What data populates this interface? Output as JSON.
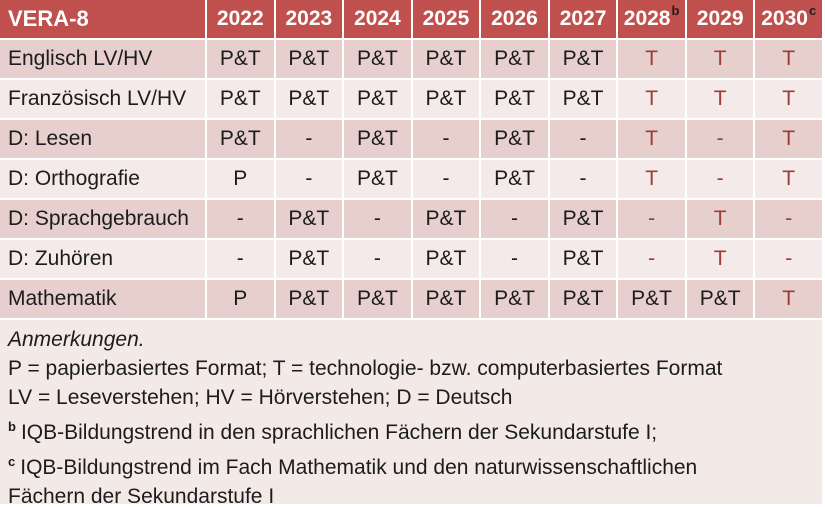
{
  "title": "VERA-8",
  "columns": [
    {
      "year": "2022",
      "sup": ""
    },
    {
      "year": "2023",
      "sup": ""
    },
    {
      "year": "2024",
      "sup": ""
    },
    {
      "year": "2025",
      "sup": ""
    },
    {
      "year": "2026",
      "sup": ""
    },
    {
      "year": "2027",
      "sup": ""
    },
    {
      "year": "2028",
      "sup": "b"
    },
    {
      "year": "2029",
      "sup": ""
    },
    {
      "year": "2030",
      "sup": "c"
    }
  ],
  "rows": [
    {
      "label": "Englisch LV/HV",
      "cells": [
        {
          "text": "P&T",
          "red": false
        },
        {
          "text": "P&T",
          "red": false
        },
        {
          "text": "P&T",
          "red": false
        },
        {
          "text": "P&T",
          "red": false
        },
        {
          "text": "P&T",
          "red": false
        },
        {
          "text": "P&T",
          "red": false
        },
        {
          "text": "T",
          "red": true
        },
        {
          "text": "T",
          "red": true
        },
        {
          "text": "T",
          "red": true
        }
      ]
    },
    {
      "label": "Französisch LV/HV",
      "cells": [
        {
          "text": "P&T",
          "red": false
        },
        {
          "text": "P&T",
          "red": false
        },
        {
          "text": "P&T",
          "red": false
        },
        {
          "text": "P&T",
          "red": false
        },
        {
          "text": "P&T",
          "red": false
        },
        {
          "text": "P&T",
          "red": false
        },
        {
          "text": "T",
          "red": true
        },
        {
          "text": "T",
          "red": true
        },
        {
          "text": "T",
          "red": true
        }
      ]
    },
    {
      "label": "D: Lesen",
      "cells": [
        {
          "text": "P&T",
          "red": false
        },
        {
          "text": "-",
          "red": false
        },
        {
          "text": "P&T",
          "red": false
        },
        {
          "text": "-",
          "red": false
        },
        {
          "text": "P&T",
          "red": false
        },
        {
          "text": "-",
          "red": false
        },
        {
          "text": "T",
          "red": true
        },
        {
          "text": "-",
          "red": true
        },
        {
          "text": "T",
          "red": true
        }
      ]
    },
    {
      "label": "D: Orthografie",
      "cells": [
        {
          "text": "P",
          "red": false
        },
        {
          "text": "-",
          "red": false
        },
        {
          "text": "P&T",
          "red": false
        },
        {
          "text": "-",
          "red": false
        },
        {
          "text": "P&T",
          "red": false
        },
        {
          "text": "-",
          "red": false
        },
        {
          "text": "T",
          "red": true
        },
        {
          "text": "-",
          "red": true
        },
        {
          "text": "T",
          "red": true
        }
      ]
    },
    {
      "label": "D: Sprachgebrauch",
      "cells": [
        {
          "text": "-",
          "red": false
        },
        {
          "text": "P&T",
          "red": false
        },
        {
          "text": "-",
          "red": false
        },
        {
          "text": "P&T",
          "red": false
        },
        {
          "text": "-",
          "red": false
        },
        {
          "text": "P&T",
          "red": false
        },
        {
          "text": "-",
          "red": true
        },
        {
          "text": "T",
          "red": true
        },
        {
          "text": "-",
          "red": true
        }
      ]
    },
    {
      "label": "D: Zuhören",
      "cells": [
        {
          "text": "-",
          "red": false
        },
        {
          "text": "P&T",
          "red": false
        },
        {
          "text": "-",
          "red": false
        },
        {
          "text": "P&T",
          "red": false
        },
        {
          "text": "-",
          "red": false
        },
        {
          "text": "P&T",
          "red": false
        },
        {
          "text": "-",
          "red": true
        },
        {
          "text": "T",
          "red": true
        },
        {
          "text": "-",
          "red": true
        }
      ]
    },
    {
      "label": "Mathematik",
      "cells": [
        {
          "text": "P",
          "red": false
        },
        {
          "text": "P&T",
          "red": false
        },
        {
          "text": "P&T",
          "red": false
        },
        {
          "text": "P&T",
          "red": false
        },
        {
          "text": "P&T",
          "red": false
        },
        {
          "text": "P&T",
          "red": false
        },
        {
          "text": "P&T",
          "red": false
        },
        {
          "text": "P&T",
          "red": false
        },
        {
          "text": "T",
          "red": true
        }
      ]
    }
  ],
  "notes": {
    "heading": "Anmerkungen.",
    "lines": [
      {
        "sup": "",
        "text": "P = papierbasiertes Format; T = technologie- bzw. computerbasiertes Format"
      },
      {
        "sup": "",
        "text": "LV = Leseverstehen; HV = Hörverstehen; D = Deutsch"
      },
      {
        "sup": "b",
        "text": "IQB-Bildungstrend in den sprachlichen Fächern der Sekundarstufe I;"
      },
      {
        "sup": "c",
        "text": "IQB-Bildungstrend im Fach Mathematik und den naturwissenschaftlichen Fächern der Sekundarstufe I"
      }
    ]
  },
  "colors": {
    "header_bg": "#C0504D",
    "header_text": "#FFFFFF",
    "band_dark": "#E6CFCD",
    "band_light": "#F4EAE9",
    "notes_bg": "#F3E9E7",
    "accent_text": "#9E3B38",
    "body_text": "#1C1C1C",
    "grid": "#FFFFFF"
  }
}
